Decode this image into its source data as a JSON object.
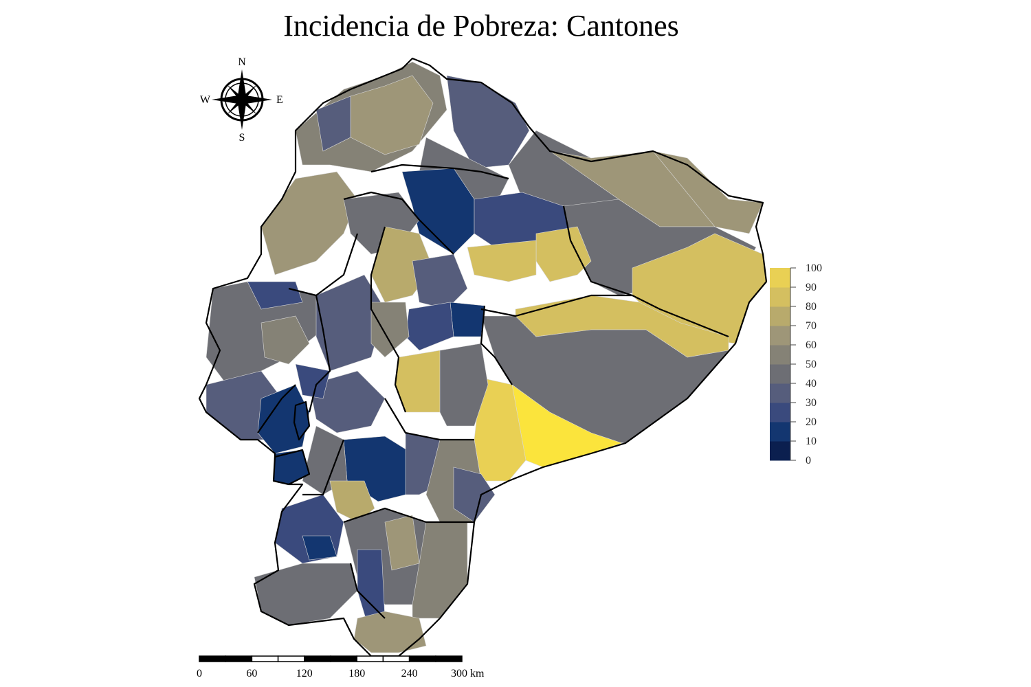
{
  "title": "Incidencia de Pobreza: Cantones",
  "compass": {
    "north": "N",
    "south": "S",
    "east": "E",
    "west": "W"
  },
  "legend": {
    "ticks": [
      "0",
      "10",
      "20",
      "30",
      "40",
      "50",
      "60",
      "70",
      "80",
      "90",
      "100"
    ],
    "colors": [
      "#0b1f4f",
      "#133670",
      "#3a4a7d",
      "#565d7c",
      "#6d6e74",
      "#858276",
      "#9e9678",
      "#b8aa6c",
      "#d4bf60",
      "#e9d054",
      "#fbe43c"
    ]
  },
  "scale_bar": {
    "labels": [
      "0",
      "60",
      "120",
      "180",
      "240",
      "300 km"
    ]
  },
  "palette": {
    "border": "#000000",
    "canton_stroke": "#d9d9d9"
  }
}
